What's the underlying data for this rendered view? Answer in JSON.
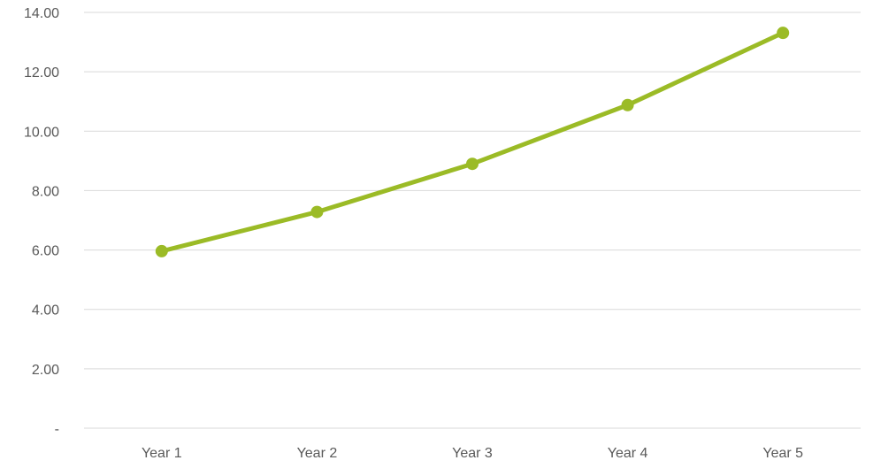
{
  "chart_data": {
    "type": "line",
    "title": "",
    "xlabel": "",
    "ylabel": "",
    "categories": [
      "Year 1",
      "Year 2",
      "Year 3",
      "Year 4",
      "Year 5"
    ],
    "series": [
      {
        "values": [
          5.96,
          7.28,
          8.9,
          10.88,
          13.31
        ],
        "color": "#9bbb26"
      }
    ],
    "ylim": [
      0,
      14
    ],
    "yticks": [
      0,
      2,
      4,
      6,
      8,
      10,
      12,
      14
    ],
    "ytick_labels": [
      "-",
      "2.00",
      "4.00",
      "6.00",
      "8.00",
      "10.00",
      "12.00",
      "14.00"
    ],
    "grid": true,
    "legend": "none",
    "markers": true
  }
}
